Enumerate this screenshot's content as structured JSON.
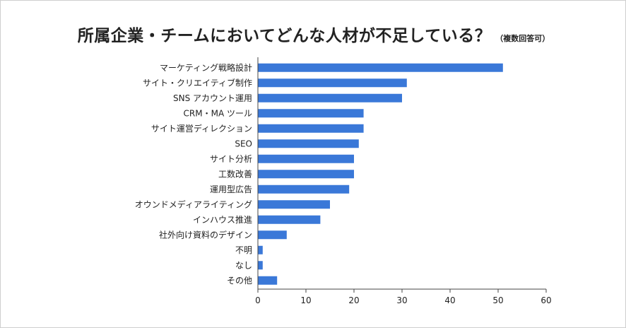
{
  "chart_data": {
    "type": "bar",
    "orientation": "horizontal",
    "title": "所属企業・チームにおいてどんな人材が不足している？",
    "subtitle": "（複数回答可）",
    "categories": [
      "マーケティング戦略設計",
      "サイト・クリエイティブ制作",
      "SNS アカウント運用",
      "CRM・MA ツール",
      "サイト運営ディレクション",
      "SEO",
      "サイト分析",
      "工数改善",
      "運用型広告",
      "オウンドメディアライティング",
      "インハウス推進",
      "社外向け資料のデザイン",
      "不明",
      "なし",
      "その他"
    ],
    "values": [
      51,
      31,
      30,
      22,
      22,
      21,
      20,
      20,
      19,
      15,
      13,
      6,
      1,
      1,
      4
    ],
    "xlim": [
      0,
      60
    ],
    "xticks": [
      "0",
      "10",
      "20",
      "30",
      "40",
      "50",
      "60"
    ],
    "bar_color": "#3a78d8",
    "grid": false
  }
}
